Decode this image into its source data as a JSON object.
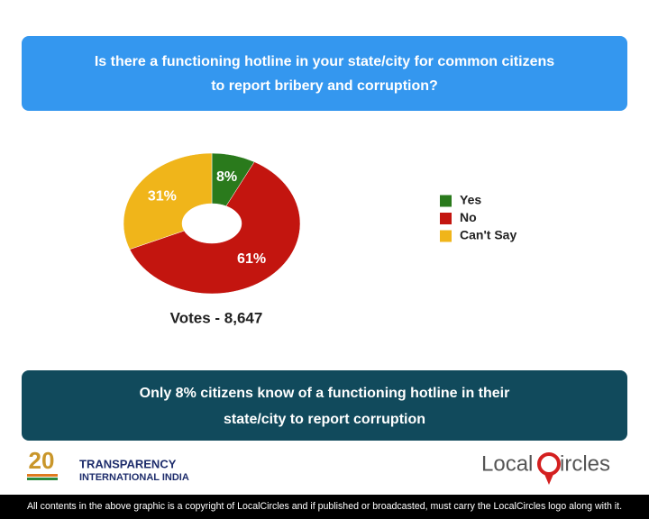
{
  "chart_data": {
    "type": "pie",
    "donut": true,
    "title": [
      "Is there a functioning hotline in your state/city for common citizens",
      "to report bribery and corruption?"
    ],
    "categories": [
      "Yes",
      "No",
      "Can't Say"
    ],
    "values": [
      8,
      61,
      31
    ],
    "value_labels": [
      "8%",
      "61%",
      "31%"
    ],
    "colors": [
      "#2a7a1c",
      "#c3150f",
      "#f0b51a"
    ],
    "legend": "right",
    "note": "Votes - 8,647"
  },
  "conclusion": [
    "Only 8% citizens know of a functioning hotline in their",
    "state/city to report corruption"
  ],
  "logos": {
    "left": {
      "badge": "20",
      "line1": "TRANSPARENCY",
      "line2": "INTERNATIONAL INDIA"
    },
    "right": {
      "part1": "Local",
      "part2": "ircles"
    }
  },
  "footer": "All contents in the above graphic is a copyright of LocalCircles and if published or broadcasted, must carry the LocalCircles logo along with it."
}
